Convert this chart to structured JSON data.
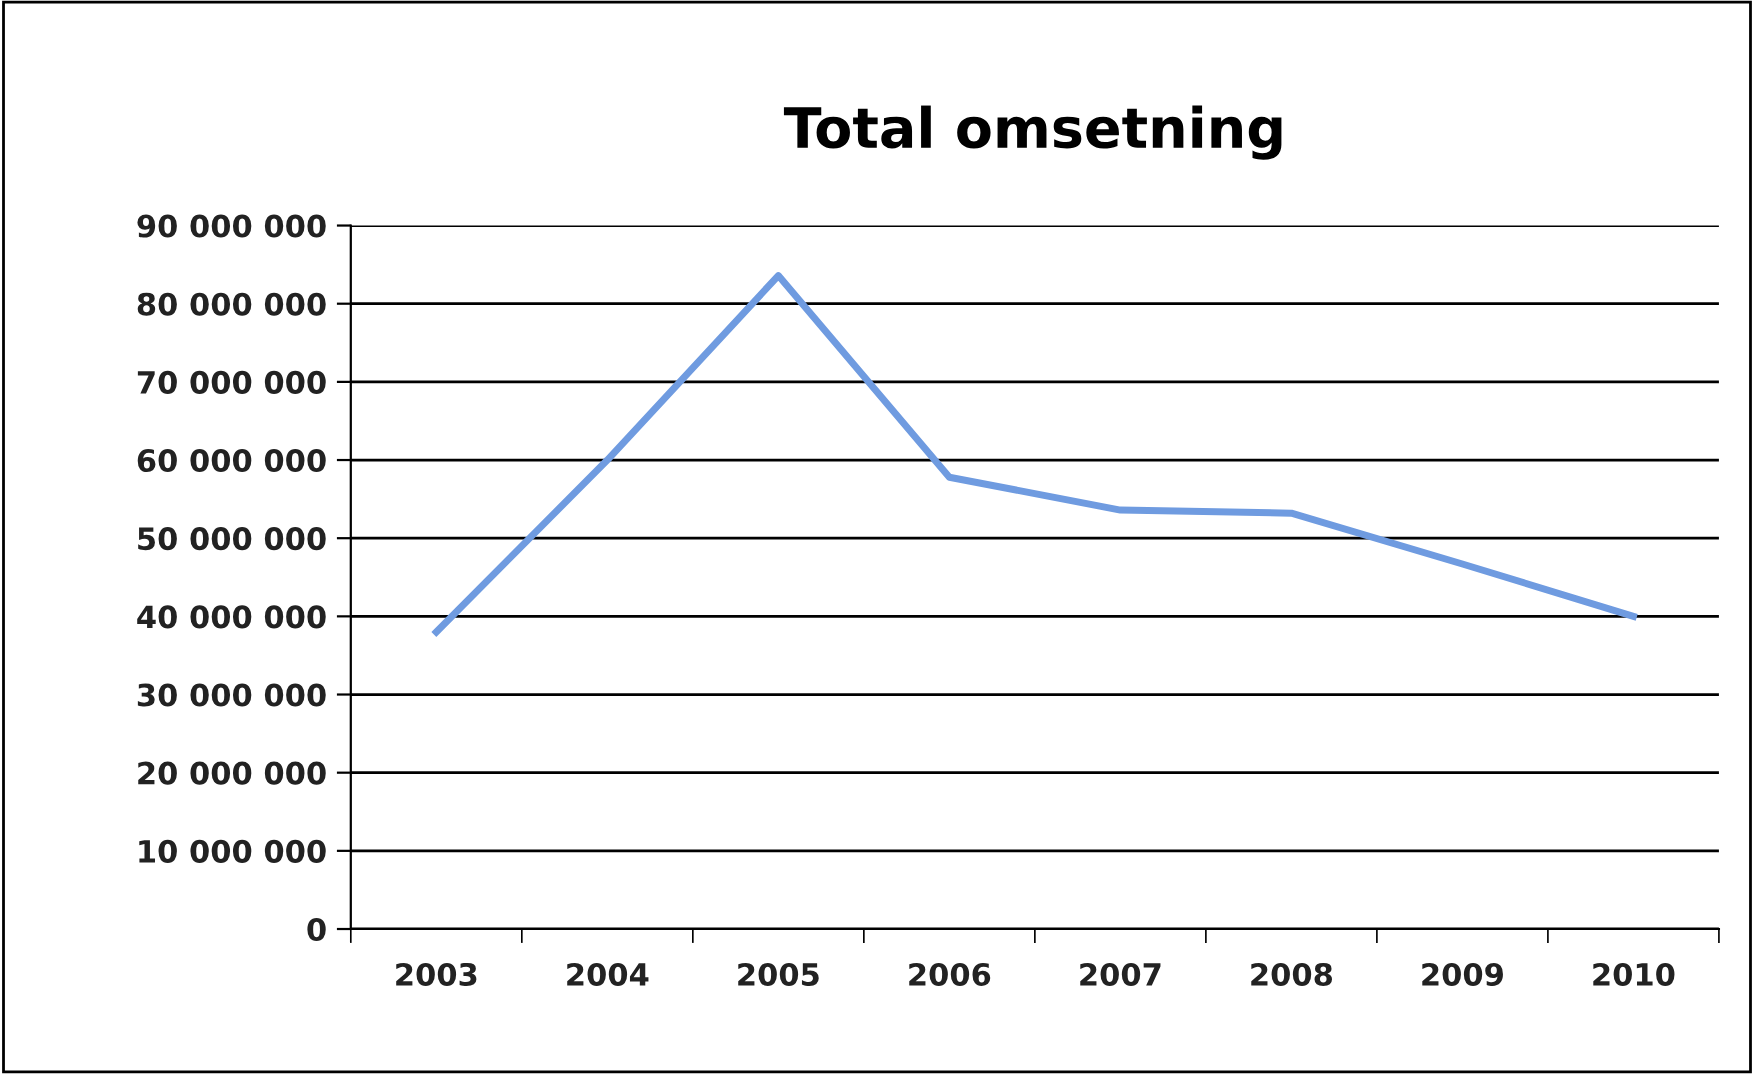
{
  "chart_data": {
    "type": "line",
    "title": "Total omsetning",
    "categories": [
      "2003",
      "2004",
      "2005",
      "2006",
      "2007",
      "2008",
      "2009",
      "2010"
    ],
    "series": [
      {
        "color": "#6f9be0",
        "values": [
          38000000,
          60000000,
          83600000,
          57800000,
          53600000,
          53200000,
          46700000,
          40000000
        ]
      }
    ],
    "ylim": [
      0,
      90000000
    ],
    "yticks": [
      {
        "value": 0,
        "label": "0"
      },
      {
        "value": 10000000,
        "label": "10 000 000"
      },
      {
        "value": 20000000,
        "label": "20 000 000"
      },
      {
        "value": 30000000,
        "label": "30 000 000"
      },
      {
        "value": 40000000,
        "label": "40 000 000"
      },
      {
        "value": 50000000,
        "label": "50 000 000"
      },
      {
        "value": 60000000,
        "label": "60 000 000"
      },
      {
        "value": 70000000,
        "label": "70 000 000"
      },
      {
        "value": 80000000,
        "label": "80 000 000"
      },
      {
        "value": 90000000,
        "label": "90 000 000"
      }
    ],
    "grid": "y",
    "legend": false,
    "marker": "none",
    "line_style": "solid"
  }
}
